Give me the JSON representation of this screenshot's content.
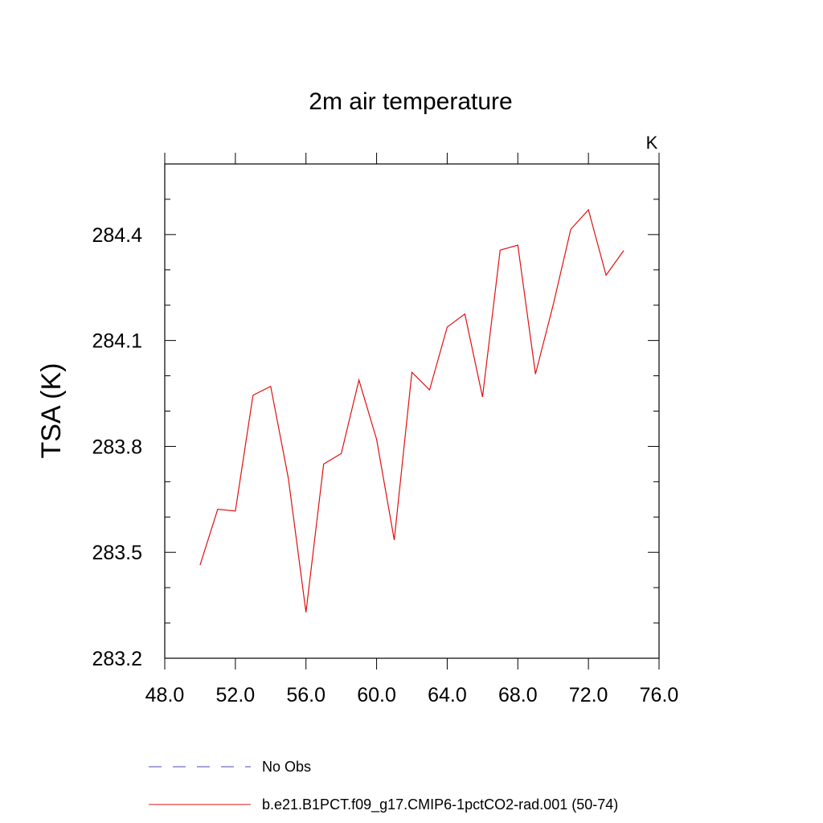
{
  "chart_data": {
    "type": "line",
    "title": "2m air temperature",
    "units_label": "K",
    "ylabel": "TSA  (K)",
    "xlabel": "",
    "xlim": [
      48,
      76
    ],
    "ylim": [
      283.2,
      284.6
    ],
    "x_ticks": [
      "48.0",
      "52.0",
      "56.0",
      "60.0",
      "64.0",
      "68.0",
      "72.0",
      "76.0"
    ],
    "y_ticks": [
      "283.2",
      "283.5",
      "283.8",
      "284.1",
      "284.4"
    ],
    "x_tick_values": [
      48,
      52,
      56,
      60,
      64,
      68,
      72,
      76
    ],
    "y_tick_values": [
      283.2,
      283.5,
      283.8,
      284.1,
      284.4
    ],
    "grid": false,
    "legend_position": "bottom",
    "series": [
      {
        "name": "No Obs",
        "color": "#4b4bb4",
        "style": "dashed",
        "x": [],
        "values": []
      },
      {
        "name": "b.e21.B1PCT.f09_g17.CMIP6-1pctCO2-rad.001 (50-74)",
        "color": "#e01010",
        "style": "solid",
        "x": [
          50,
          51,
          52,
          53,
          54,
          55,
          56,
          57,
          58,
          59,
          60,
          61,
          62,
          63,
          64,
          65,
          66,
          67,
          68,
          69,
          70,
          71,
          72,
          73,
          74
        ],
        "values": [
          283.464,
          283.622,
          283.617,
          283.945,
          283.97,
          283.71,
          283.33,
          283.75,
          283.78,
          283.988,
          283.82,
          283.535,
          284.01,
          283.96,
          284.138,
          284.175,
          283.94,
          284.356,
          284.37,
          284.005,
          284.2,
          284.415,
          284.47,
          284.285,
          284.355
        ]
      }
    ]
  }
}
